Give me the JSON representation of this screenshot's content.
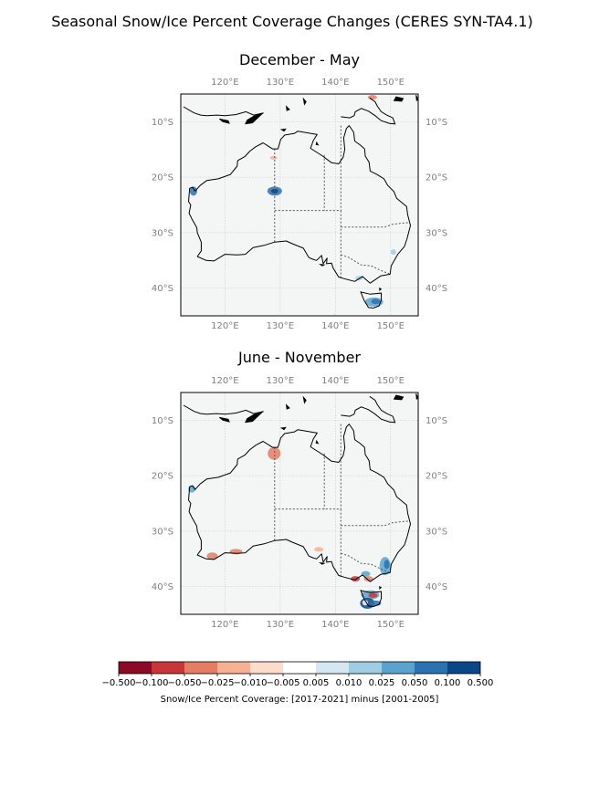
{
  "title": "Seasonal Snow/Ice Percent Coverage Changes  (CERES SYN-TA4.1)",
  "panels": [
    {
      "title": "December - May"
    },
    {
      "title": "June - November"
    }
  ],
  "map_extent": {
    "lon": [
      112,
      155
    ],
    "lat": [
      -45,
      -5
    ]
  },
  "lon_ticks": [
    {
      "value": 120,
      "label": "120°E"
    },
    {
      "value": 130,
      "label": "130°E"
    },
    {
      "value": 140,
      "label": "140°E"
    },
    {
      "value": 150,
      "label": "150°E"
    }
  ],
  "lat_ticks": [
    {
      "value": -10,
      "label": "10°S"
    },
    {
      "value": -20,
      "label": "20°S"
    },
    {
      "value": -30,
      "label": "30°S"
    },
    {
      "value": -40,
      "label": "40°S"
    }
  ],
  "colorbar": {
    "ticks": [
      "−0.500",
      "−0.100",
      "−0.050",
      "−0.025",
      "−0.010",
      "−0.005",
      "0.005",
      "0.010",
      "0.025",
      "0.050",
      "0.100",
      "0.500"
    ],
    "colors": [
      "#8b0a26",
      "#c8363a",
      "#e37e63",
      "#f6b194",
      "#fddccc",
      "#ffffff",
      "#d5e8f2",
      "#a0cde3",
      "#5ba3cf",
      "#2b72b1",
      "#0b4787"
    ],
    "label": "Snow/Ice Percent Coverage: [2017-2021] minus [2001-2005]"
  },
  "colors": {
    "land_background": "#f4f6f6",
    "coastline": "#000000",
    "borders": "#555555",
    "grid": "#c8c8c8"
  }
}
